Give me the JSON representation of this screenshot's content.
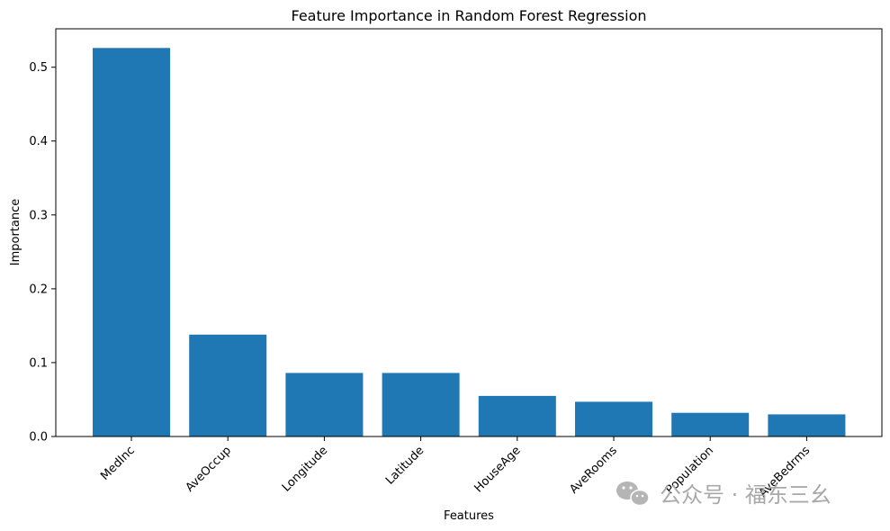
{
  "chart_data": {
    "type": "bar",
    "title": "Feature Importance in Random Forest Regression",
    "xlabel": "Features",
    "ylabel": "Importance",
    "categories": [
      "MedInc",
      "AveOccup",
      "Longitude",
      "Latitude",
      "HouseAge",
      "AveRooms",
      "Population",
      "AveBedrms"
    ],
    "values": [
      0.526,
      0.138,
      0.086,
      0.086,
      0.055,
      0.047,
      0.032,
      0.03
    ],
    "ylim": [
      0,
      0.552
    ],
    "yticks": [
      "0.0",
      "0.1",
      "0.2",
      "0.3",
      "0.4",
      "0.5"
    ],
    "bar_color": "#1f77b4",
    "grid": false
  },
  "watermark": {
    "text": "公众号 · 福东三幺",
    "icon": "wechat-icon",
    "color": "#a9a9a9"
  }
}
